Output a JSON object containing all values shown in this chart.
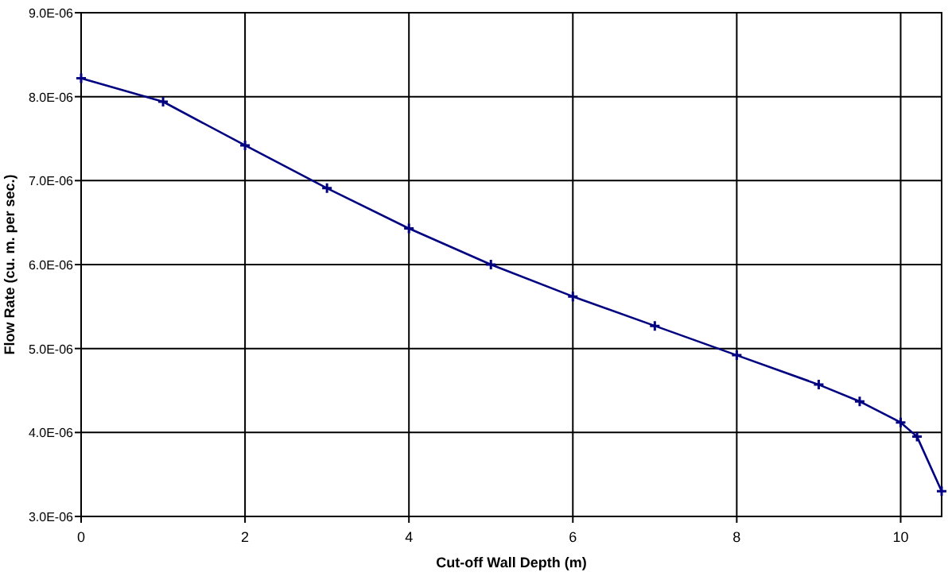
{
  "chart_data": {
    "type": "line",
    "xlabel": "Cut-off Wall Depth (m)",
    "ylabel": "Flow Rate (cu. m. per sec.)",
    "x": [
      0,
      1,
      2,
      3,
      4,
      5,
      6,
      7,
      8,
      9,
      9.5,
      10,
      10.2,
      10.5
    ],
    "series": [
      {
        "color": "#000080",
        "values": [
          8.22e-06,
          7.94e-06,
          7.42e-06,
          6.91e-06,
          6.43e-06,
          6e-06,
          5.62e-06,
          5.27e-06,
          4.92e-06,
          4.57e-06,
          4.37e-06,
          4.12e-06,
          3.95e-06,
          3.3e-06
        ]
      }
    ],
    "xlim": [
      0,
      10.5
    ],
    "xticks": [
      0,
      2,
      4,
      6,
      8,
      10
    ],
    "ylim": [
      3e-06,
      9e-06
    ],
    "yticks": [
      {
        "value": 3e-06,
        "label": "3.0E-06"
      },
      {
        "value": 4e-06,
        "label": "4.0E-06"
      },
      {
        "value": 5e-06,
        "label": "5.0E-06"
      },
      {
        "value": 6e-06,
        "label": "6.0E-06"
      },
      {
        "value": 7e-06,
        "label": "7.0E-06"
      },
      {
        "value": 8e-06,
        "label": "8.0E-06"
      },
      {
        "value": 9e-06,
        "label": "9.0E-06"
      }
    ],
    "grid": true,
    "marker": "cross",
    "line_style": "solid"
  }
}
